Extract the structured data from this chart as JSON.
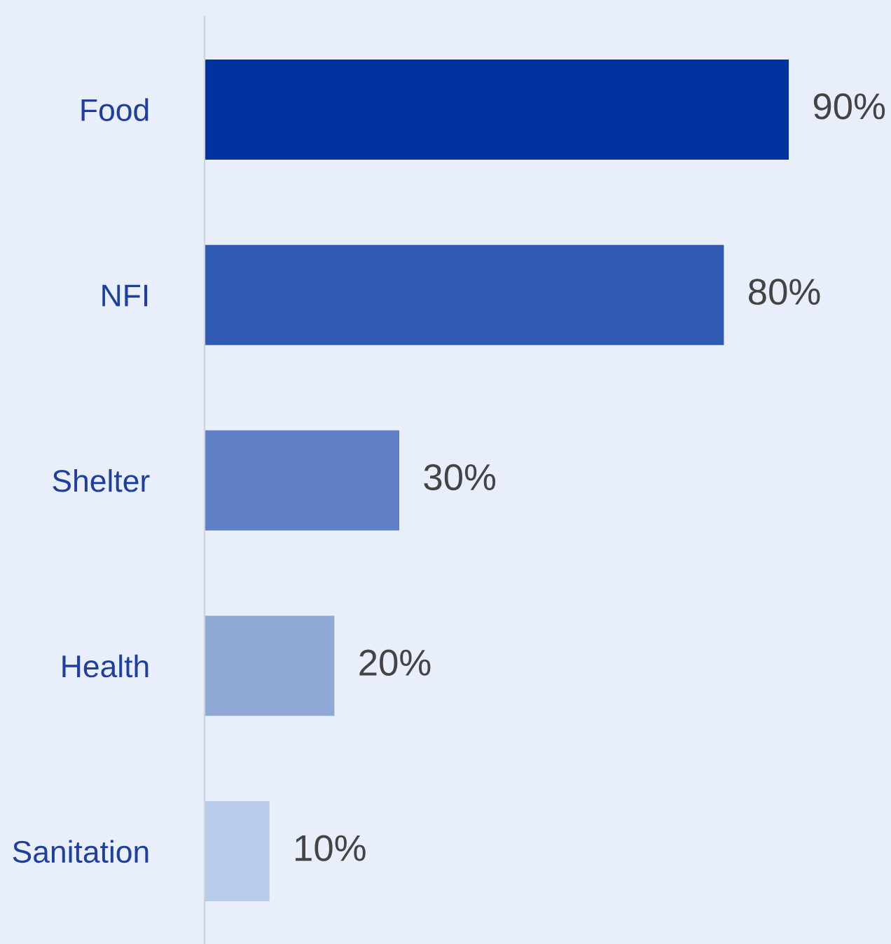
{
  "chart_data": {
    "type": "bar",
    "orientation": "horizontal",
    "categories": [
      "Food",
      "NFI",
      "Shelter",
      "Health",
      "Sanitation"
    ],
    "values": [
      90,
      80,
      30,
      20,
      10
    ],
    "colors": [
      "#0033a0",
      "#2e5ab4",
      "#5f80c6",
      "#8fa8d6",
      "#b8cbea"
    ],
    "value_labels": [
      "90%",
      "80%",
      "30%",
      "20%",
      "10%"
    ],
    "grid": false,
    "legend": false
  }
}
